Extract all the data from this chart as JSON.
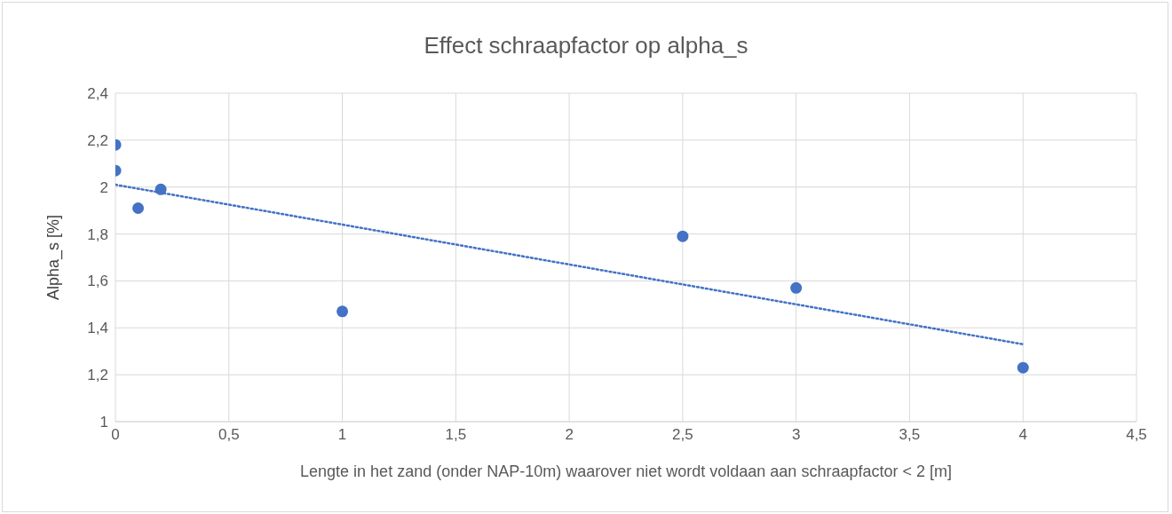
{
  "chart_data": {
    "type": "scatter",
    "title": "Effect schraapfactor op alpha_s",
    "xlabel": "Lengte in het zand (onder NAP-10m) waarover niet wordt voldaan aan schraapfactor < 2  [m]",
    "ylabel": "Alpha_s [%]",
    "series": [
      {
        "color": "#4472c4",
        "marker": "circle",
        "x": [
          0,
          0,
          0.1,
          0.2,
          1,
          2.5,
          3,
          4
        ],
        "values": [
          2.18,
          2.07,
          1.91,
          1.99,
          1.47,
          1.79,
          1.57,
          1.23
        ]
      },
      {
        "type": "line",
        "color": "#4472c4",
        "marker": "none",
        "line_style": "dotted",
        "x": [
          0,
          4
        ],
        "values": [
          2.01,
          1.33
        ]
      }
    ],
    "xlim": [
      0,
      4.5
    ],
    "xticks": [
      0,
      {
        "value": 0.5,
        "label": "0,5"
      },
      1,
      {
        "value": 1.5,
        "label": "1,5"
      },
      2,
      {
        "value": 2.5,
        "label": "2,5"
      },
      3,
      {
        "value": 3.5,
        "label": "3,5"
      },
      4,
      {
        "value": 4.5,
        "label": "4,5"
      }
    ],
    "ylim": [
      1,
      2.4
    ],
    "yticks": [
      1,
      {
        "value": 1.2,
        "label": "1,2"
      },
      {
        "value": 1.4,
        "label": "1,4"
      },
      {
        "value": 1.6,
        "label": "1,6"
      },
      {
        "value": 1.8,
        "label": "1,8"
      },
      2,
      {
        "value": 2.2,
        "label": "2,2"
      },
      {
        "value": 2.4,
        "label": "2,4"
      }
    ],
    "grid": true,
    "legend": false
  }
}
